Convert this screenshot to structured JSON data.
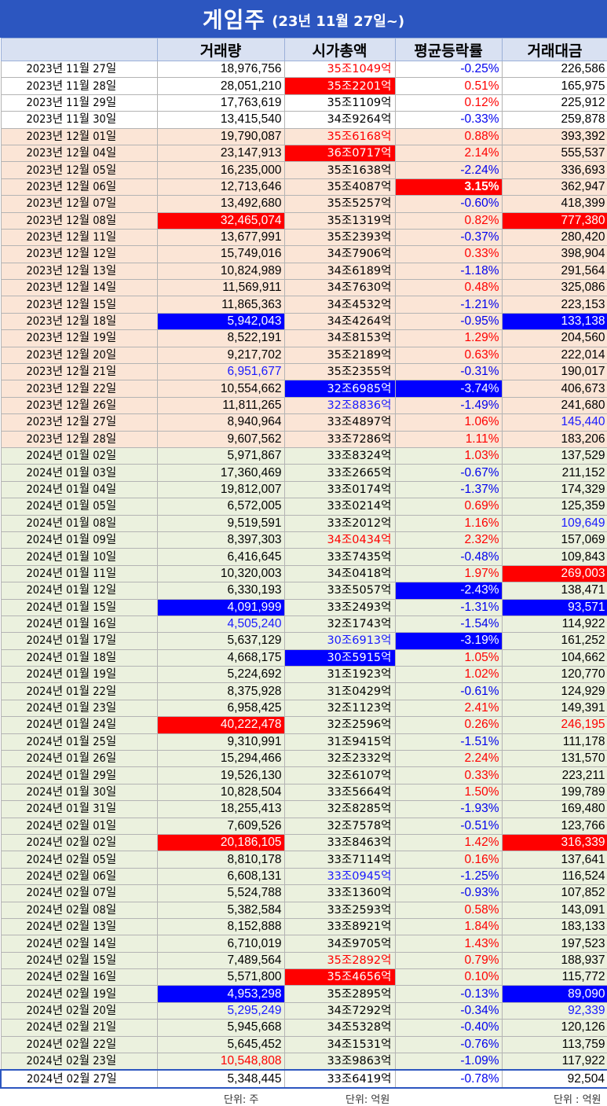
{
  "title": {
    "main": "게임주",
    "sub": "(23년 11월 27일~)"
  },
  "headers": [
    "",
    "거래량",
    "시가총액",
    "평균등락률",
    "거래대금"
  ],
  "rows": [
    {
      "date": "2023년 11월 27일",
      "vol": "18,976,756",
      "cap": "35조1049억",
      "chg": "-0.25%",
      "amt": "226,586",
      "p": "nov",
      "vc": "",
      "cc": "t-red",
      "gc": "",
      "ac": ""
    },
    {
      "date": "2023년 11월 28일",
      "vol": "28,051,210",
      "cap": "35조2201억",
      "chg": "0.51%",
      "amt": "165,975",
      "p": "nov",
      "vc": "",
      "cc": "hl-red",
      "gc": "",
      "ac": ""
    },
    {
      "date": "2023년 11월 29일",
      "vol": "17,763,619",
      "cap": "35조1109억",
      "chg": "0.12%",
      "amt": "225,912",
      "p": "nov",
      "vc": "",
      "cc": "",
      "gc": "",
      "ac": ""
    },
    {
      "date": "2023년 11월 30일",
      "vol": "13,415,540",
      "cap": "34조9264억",
      "chg": "-0.33%",
      "amt": "259,878",
      "p": "nov",
      "vc": "",
      "cc": "",
      "gc": "",
      "ac": ""
    },
    {
      "date": "2023년 12월 01일",
      "vol": "19,790,087",
      "cap": "35조6168억",
      "chg": "0.88%",
      "amt": "393,392",
      "p": "dec",
      "vc": "",
      "cc": "t-red",
      "gc": "",
      "ac": ""
    },
    {
      "date": "2023년 12월 04일",
      "vol": "23,147,913",
      "cap": "36조0717억",
      "chg": "2.14%",
      "amt": "555,537",
      "p": "dec",
      "vc": "",
      "cc": "hl-red",
      "gc": "",
      "ac": ""
    },
    {
      "date": "2023년 12월 05일",
      "vol": "16,235,000",
      "cap": "35조1638억",
      "chg": "-2.24%",
      "amt": "336,693",
      "p": "dec",
      "vc": "",
      "cc": "",
      "gc": "",
      "ac": ""
    },
    {
      "date": "2023년 12월 06일",
      "vol": "12,713,646",
      "cap": "35조4087억",
      "chg": "3.15%",
      "amt": "362,947",
      "p": "dec",
      "vc": "",
      "cc": "",
      "gc": "hl-red big",
      "ac": ""
    },
    {
      "date": "2023년 12월 07일",
      "vol": "13,492,680",
      "cap": "35조5257억",
      "chg": "-0.60%",
      "amt": "418,399",
      "p": "dec",
      "vc": "",
      "cc": "",
      "gc": "",
      "ac": ""
    },
    {
      "date": "2023년 12월 08일",
      "vol": "32,465,074",
      "cap": "35조1319억",
      "chg": "0.82%",
      "amt": "777,380",
      "p": "dec",
      "vc": "hl-red",
      "cc": "",
      "gc": "",
      "ac": "hl-red"
    },
    {
      "date": "2023년 12월 11일",
      "vol": "13,677,991",
      "cap": "35조2393억",
      "chg": "-0.37%",
      "amt": "280,420",
      "p": "dec",
      "vc": "",
      "cc": "",
      "gc": "",
      "ac": ""
    },
    {
      "date": "2023년 12월 12일",
      "vol": "15,749,016",
      "cap": "34조7906억",
      "chg": "0.33%",
      "amt": "398,904",
      "p": "dec",
      "vc": "",
      "cc": "",
      "gc": "",
      "ac": ""
    },
    {
      "date": "2023년 12월 13일",
      "vol": "10,824,989",
      "cap": "34조6189억",
      "chg": "-1.18%",
      "amt": "291,564",
      "p": "dec",
      "vc": "",
      "cc": "",
      "gc": "",
      "ac": ""
    },
    {
      "date": "2023년 12월 14일",
      "vol": "11,569,911",
      "cap": "34조7630억",
      "chg": "0.48%",
      "amt": "325,086",
      "p": "dec",
      "vc": "",
      "cc": "",
      "gc": "",
      "ac": ""
    },
    {
      "date": "2023년 12월 15일",
      "vol": "11,865,363",
      "cap": "34조4532억",
      "chg": "-1.21%",
      "amt": "223,153",
      "p": "dec",
      "vc": "",
      "cc": "",
      "gc": "",
      "ac": ""
    },
    {
      "date": "2023년 12월 18일",
      "vol": "5,942,043",
      "cap": "34조4264억",
      "chg": "-0.95%",
      "amt": "133,138",
      "p": "dec",
      "vc": "hl-blue",
      "cc": "",
      "gc": "",
      "ac": "hl-blue"
    },
    {
      "date": "2023년 12월 19일",
      "vol": "8,522,191",
      "cap": "34조8153억",
      "chg": "1.29%",
      "amt": "204,560",
      "p": "dec",
      "vc": "",
      "cc": "",
      "gc": "",
      "ac": ""
    },
    {
      "date": "2023년 12월 20일",
      "vol": "9,217,702",
      "cap": "35조2189억",
      "chg": "0.63%",
      "amt": "222,014",
      "p": "dec",
      "vc": "",
      "cc": "",
      "gc": "",
      "ac": ""
    },
    {
      "date": "2023년 12월 21일",
      "vol": "6,951,677",
      "cap": "35조2355억",
      "chg": "-0.31%",
      "amt": "190,017",
      "p": "dec",
      "vc": "t-blue",
      "cc": "",
      "gc": "",
      "ac": ""
    },
    {
      "date": "2023년 12월 22일",
      "vol": "10,554,662",
      "cap": "32조6985억",
      "chg": "-3.74%",
      "amt": "406,673",
      "p": "dec",
      "vc": "",
      "cc": "hl-blue",
      "gc": "hl-blue",
      "ac": ""
    },
    {
      "date": "2023년 12월 26일",
      "vol": "11,811,265",
      "cap": "32조8836억",
      "chg": "-1.49%",
      "amt": "241,680",
      "p": "dec",
      "vc": "",
      "cc": "t-blue",
      "gc": "",
      "ac": ""
    },
    {
      "date": "2023년 12월 27일",
      "vol": "8,940,964",
      "cap": "33조4897억",
      "chg": "1.06%",
      "amt": "145,440",
      "p": "dec",
      "vc": "",
      "cc": "",
      "gc": "",
      "ac": "t-blue"
    },
    {
      "date": "2023년 12월 28일",
      "vol": "9,607,562",
      "cap": "33조7286억",
      "chg": "1.11%",
      "amt": "183,206",
      "p": "dec",
      "vc": "",
      "cc": "",
      "gc": "",
      "ac": ""
    },
    {
      "date": "2024년 01월 02일",
      "vol": "5,971,867",
      "cap": "33조8324억",
      "chg": "1.03%",
      "amt": "137,529",
      "p": "jan",
      "vc": "",
      "cc": "",
      "gc": "",
      "ac": ""
    },
    {
      "date": "2024년 01월 03일",
      "vol": "17,360,469",
      "cap": "33조2665억",
      "chg": "-0.67%",
      "amt": "211,152",
      "p": "jan",
      "vc": "",
      "cc": "",
      "gc": "",
      "ac": ""
    },
    {
      "date": "2024년 01월 04일",
      "vol": "19,812,007",
      "cap": "33조0174억",
      "chg": "-1.37%",
      "amt": "174,329",
      "p": "jan",
      "vc": "",
      "cc": "",
      "gc": "",
      "ac": ""
    },
    {
      "date": "2024년 01월 05일",
      "vol": "6,572,005",
      "cap": "33조0214억",
      "chg": "0.69%",
      "amt": "125,359",
      "p": "jan",
      "vc": "",
      "cc": "",
      "gc": "",
      "ac": ""
    },
    {
      "date": "2024년 01월 08일",
      "vol": "9,519,591",
      "cap": "33조2012억",
      "chg": "1.16%",
      "amt": "109,649",
      "p": "jan",
      "vc": "",
      "cc": "",
      "gc": "",
      "ac": "t-blue"
    },
    {
      "date": "2024년 01월 09일",
      "vol": "8,397,303",
      "cap": "34조0434억",
      "chg": "2.32%",
      "amt": "157,069",
      "p": "jan",
      "vc": "",
      "cc": "t-red",
      "gc": "",
      "ac": ""
    },
    {
      "date": "2024년 01월 10일",
      "vol": "6,416,645",
      "cap": "33조7435억",
      "chg": "-0.48%",
      "amt": "109,843",
      "p": "jan",
      "vc": "",
      "cc": "",
      "gc": "",
      "ac": ""
    },
    {
      "date": "2024년 01월 11일",
      "vol": "10,320,003",
      "cap": "34조0418억",
      "chg": "1.97%",
      "amt": "269,003",
      "p": "jan",
      "vc": "",
      "cc": "",
      "gc": "",
      "ac": "hl-red"
    },
    {
      "date": "2024년 01월 12일",
      "vol": "6,330,193",
      "cap": "33조5057억",
      "chg": "-2.43%",
      "amt": "138,471",
      "p": "jan",
      "vc": "",
      "cc": "",
      "gc": "hl-blue",
      "ac": ""
    },
    {
      "date": "2024년 01월 15일",
      "vol": "4,091,999",
      "cap": "33조2493억",
      "chg": "-1.31%",
      "amt": "93,571",
      "p": "jan",
      "vc": "hl-blue",
      "cc": "",
      "gc": "",
      "ac": "hl-blue"
    },
    {
      "date": "2024년 01월 16일",
      "vol": "4,505,240",
      "cap": "32조1743억",
      "chg": "-1.54%",
      "amt": "114,922",
      "p": "jan",
      "vc": "t-blue",
      "cc": "",
      "gc": "",
      "ac": ""
    },
    {
      "date": "2024년 01월 17일",
      "vol": "5,637,129",
      "cap": "30조6913억",
      "chg": "-3.19%",
      "amt": "161,252",
      "p": "jan",
      "vc": "",
      "cc": "t-blue",
      "gc": "hl-blue",
      "ac": ""
    },
    {
      "date": "2024년 01월 18일",
      "vol": "4,668,175",
      "cap": "30조5915억",
      "chg": "1.05%",
      "amt": "104,662",
      "p": "jan",
      "vc": "",
      "cc": "hl-blue",
      "gc": "",
      "ac": ""
    },
    {
      "date": "2024년 01월 19일",
      "vol": "5,224,692",
      "cap": "31조1923억",
      "chg": "1.02%",
      "amt": "120,770",
      "p": "jan",
      "vc": "",
      "cc": "",
      "gc": "",
      "ac": ""
    },
    {
      "date": "2024년 01월 22일",
      "vol": "8,375,928",
      "cap": "31조0429억",
      "chg": "-0.61%",
      "amt": "124,929",
      "p": "jan",
      "vc": "",
      "cc": "",
      "gc": "",
      "ac": ""
    },
    {
      "date": "2024년 01월 23일",
      "vol": "6,958,425",
      "cap": "32조1123억",
      "chg": "2.41%",
      "amt": "149,391",
      "p": "jan",
      "vc": "",
      "cc": "",
      "gc": "",
      "ac": ""
    },
    {
      "date": "2024년 01월 24일",
      "vol": "40,222,478",
      "cap": "32조2596억",
      "chg": "0.26%",
      "amt": "246,195",
      "p": "jan",
      "vc": "hl-red",
      "cc": "",
      "gc": "",
      "ac": "t-red"
    },
    {
      "date": "2024년 01월 25일",
      "vol": "9,310,991",
      "cap": "31조9415억",
      "chg": "-1.51%",
      "amt": "111,178",
      "p": "jan",
      "vc": "",
      "cc": "",
      "gc": "",
      "ac": ""
    },
    {
      "date": "2024년 01월 26일",
      "vol": "15,294,466",
      "cap": "32조2332억",
      "chg": "2.24%",
      "amt": "131,570",
      "p": "jan",
      "vc": "",
      "cc": "",
      "gc": "",
      "ac": ""
    },
    {
      "date": "2024년 01월 29일",
      "vol": "19,526,130",
      "cap": "32조6107억",
      "chg": "0.33%",
      "amt": "223,211",
      "p": "jan",
      "vc": "",
      "cc": "",
      "gc": "",
      "ac": ""
    },
    {
      "date": "2024년 01월 30일",
      "vol": "10,828,504",
      "cap": "33조5664억",
      "chg": "1.50%",
      "amt": "199,789",
      "p": "jan",
      "vc": "",
      "cc": "",
      "gc": "",
      "ac": ""
    },
    {
      "date": "2024년 01월 31일",
      "vol": "18,255,413",
      "cap": "32조8285억",
      "chg": "-1.93%",
      "amt": "169,480",
      "p": "jan",
      "vc": "",
      "cc": "",
      "gc": "",
      "ac": ""
    },
    {
      "date": "2024년 02월 01일",
      "vol": "7,609,526",
      "cap": "32조7578억",
      "chg": "-0.51%",
      "amt": "123,766",
      "p": "jan",
      "vc": "",
      "cc": "",
      "gc": "",
      "ac": ""
    },
    {
      "date": "2024년 02월 02일",
      "vol": "20,186,105",
      "cap": "33조8463억",
      "chg": "1.42%",
      "amt": "316,339",
      "p": "jan",
      "vc": "hl-red",
      "cc": "",
      "gc": "",
      "ac": "hl-red"
    },
    {
      "date": "2024년 02월 05일",
      "vol": "8,810,178",
      "cap": "33조7114억",
      "chg": "0.16%",
      "amt": "137,641",
      "p": "jan",
      "vc": "",
      "cc": "",
      "gc": "",
      "ac": ""
    },
    {
      "date": "2024년 02월 06일",
      "vol": "6,608,131",
      "cap": "33조0945억",
      "chg": "-1.25%",
      "amt": "116,524",
      "p": "jan",
      "vc": "",
      "cc": "t-blue",
      "gc": "",
      "ac": ""
    },
    {
      "date": "2024년 02월 07일",
      "vol": "5,524,788",
      "cap": "33조1360억",
      "chg": "-0.93%",
      "amt": "107,852",
      "p": "jan",
      "vc": "",
      "cc": "",
      "gc": "",
      "ac": ""
    },
    {
      "date": "2024년 02월 08일",
      "vol": "5,382,584",
      "cap": "33조2593억",
      "chg": "0.58%",
      "amt": "143,091",
      "p": "jan",
      "vc": "",
      "cc": "",
      "gc": "",
      "ac": ""
    },
    {
      "date": "2024년 02월 13일",
      "vol": "8,152,888",
      "cap": "33조8921억",
      "chg": "1.84%",
      "amt": "183,133",
      "p": "jan",
      "vc": "",
      "cc": "",
      "gc": "",
      "ac": ""
    },
    {
      "date": "2024년 02월 14일",
      "vol": "6,710,019",
      "cap": "34조9705억",
      "chg": "1.43%",
      "amt": "197,523",
      "p": "jan",
      "vc": "",
      "cc": "",
      "gc": "",
      "ac": ""
    },
    {
      "date": "2024년 02월 15일",
      "vol": "7,489,564",
      "cap": "35조2892억",
      "chg": "0.79%",
      "amt": "188,937",
      "p": "jan",
      "vc": "",
      "cc": "t-red",
      "gc": "",
      "ac": ""
    },
    {
      "date": "2024년 02월 16일",
      "vol": "5,571,800",
      "cap": "35조4656억",
      "chg": "0.10%",
      "amt": "115,772",
      "p": "jan",
      "vc": "",
      "cc": "hl-red",
      "gc": "",
      "ac": ""
    },
    {
      "date": "2024년 02월 19일",
      "vol": "4,953,298",
      "cap": "35조2895억",
      "chg": "-0.13%",
      "amt": "89,090",
      "p": "jan",
      "vc": "hl-blue",
      "cc": "",
      "gc": "",
      "ac": "hl-blue"
    },
    {
      "date": "2024년 02월 20일",
      "vol": "5,295,249",
      "cap": "34조7292억",
      "chg": "-0.34%",
      "amt": "92,339",
      "p": "jan",
      "vc": "t-blue",
      "cc": "",
      "gc": "",
      "ac": "t-blue"
    },
    {
      "date": "2024년 02월 21일",
      "vol": "5,945,668",
      "cap": "34조5328억",
      "chg": "-0.40%",
      "amt": "120,126",
      "p": "jan",
      "vc": "",
      "cc": "",
      "gc": "",
      "ac": ""
    },
    {
      "date": "2024년 02월 22일",
      "vol": "5,645,452",
      "cap": "34조1531억",
      "chg": "-0.76%",
      "amt": "113,759",
      "p": "jan",
      "vc": "",
      "cc": "",
      "gc": "",
      "ac": ""
    },
    {
      "date": "2024년 02월 23일",
      "vol": "10,548,808",
      "cap": "33조9863억",
      "chg": "-1.09%",
      "amt": "117,922",
      "p": "jan",
      "vc": "t-red",
      "cc": "",
      "gc": "",
      "ac": ""
    },
    {
      "date": "2024년 02월 27일",
      "vol": "5,348,445",
      "cap": "33조6419억",
      "chg": "-0.78%",
      "amt": "92,504",
      "p": "last",
      "vc": "",
      "cc": "",
      "gc": "",
      "ac": ""
    }
  ],
  "footer": {
    "unit_vol": "단위: 주",
    "unit_cap": "단위: 억원",
    "unit_amt": "단위 : 억원"
  },
  "colors": {
    "title_bg": "#2c56c0",
    "header_bg": "#d9e1f2",
    "dec_row_bg": "#fbe5d6",
    "jan_row_bg": "#ebf1de",
    "highlight_red": "#ff0000",
    "highlight_blue": "#0000ff"
  }
}
